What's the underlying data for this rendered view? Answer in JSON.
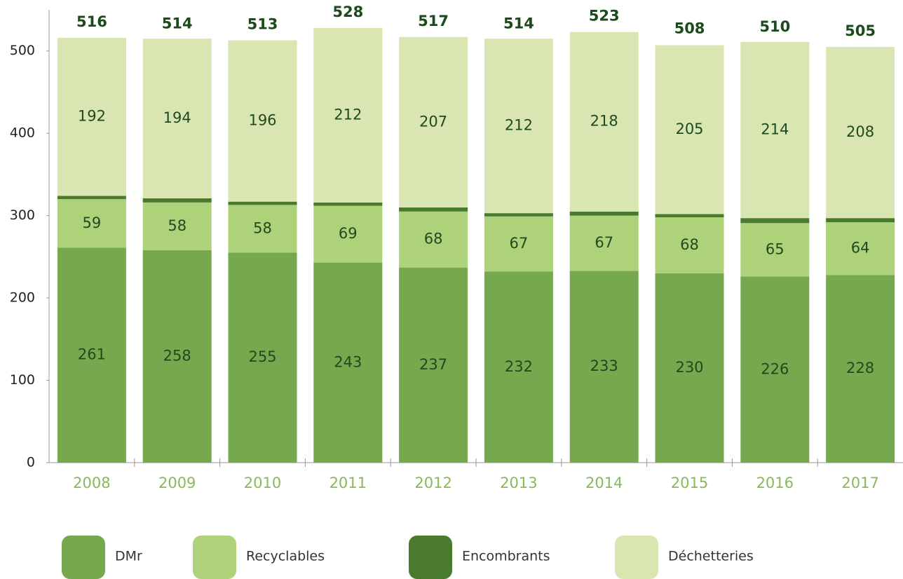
{
  "chart_data": {
    "type": "stacked_bar",
    "categories": [
      "2008",
      "2009",
      "2010",
      "2011",
      "2012",
      "2013",
      "2014",
      "2015",
      "2016",
      "2017"
    ],
    "series": [
      {
        "name": "DMr",
        "color": "#76a94e",
        "values": [
          261,
          258,
          255,
          243,
          237,
          232,
          233,
          230,
          226,
          228
        ]
      },
      {
        "name": "Recyclables",
        "color": "#aed27a",
        "values": [
          59,
          58,
          58,
          69,
          68,
          67,
          67,
          68,
          65,
          64
        ]
      },
      {
        "name": "Encombrants",
        "color": "#4a7a2e",
        "values": [
          4,
          5,
          4,
          4,
          5,
          4,
          5,
          4,
          6,
          5
        ]
      },
      {
        "name": "Déchetteries",
        "color": "#d9e6b2",
        "values": [
          192,
          194,
          196,
          212,
          207,
          212,
          218,
          205,
          214,
          208
        ]
      }
    ],
    "totals": [
      516,
      514,
      513,
      528,
      517,
      514,
      523,
      508,
      510,
      505
    ],
    "ylim": [
      0,
      550
    ],
    "yticks": [
      0,
      100,
      200,
      300,
      400,
      500
    ],
    "grid": false,
    "legend": "bottom"
  }
}
